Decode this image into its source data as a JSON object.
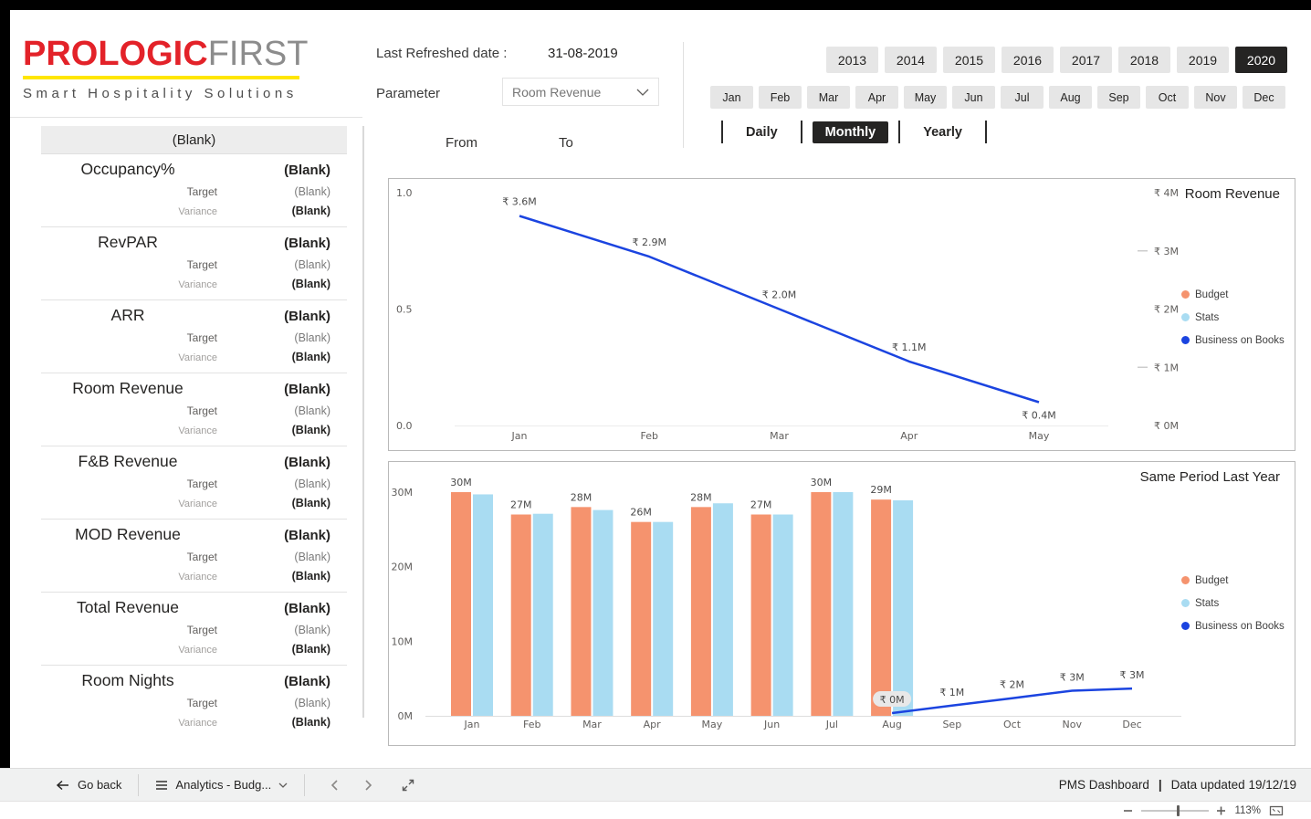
{
  "logo": {
    "brand_bold": "PROLOGIC",
    "brand_light": "FIRST",
    "tagline": "Smart Hospitality Solutions"
  },
  "kpi_panel": {
    "header": "(Blank)",
    "target_label": "Target",
    "variance_label": "Variance",
    "rows": [
      {
        "label": "Occupancy%",
        "value": "(Blank)",
        "target": "(Blank)",
        "variance": "(Blank)"
      },
      {
        "label": "RevPAR",
        "value": "(Blank)",
        "target": "(Blank)",
        "variance": "(Blank)"
      },
      {
        "label": "ARR",
        "value": "(Blank)",
        "target": "(Blank)",
        "variance": "(Blank)"
      },
      {
        "label": "Room Revenue",
        "value": "(Blank)",
        "target": "(Blank)",
        "variance": "(Blank)"
      },
      {
        "label": "F&B Revenue",
        "value": "(Blank)",
        "target": "(Blank)",
        "variance": "(Blank)"
      },
      {
        "label": "MOD Revenue",
        "value": "(Blank)",
        "target": "(Blank)",
        "variance": "(Blank)"
      },
      {
        "label": "Total Revenue",
        "value": "(Blank)",
        "target": "(Blank)",
        "variance": "(Blank)"
      },
      {
        "label": "Room Nights",
        "value": "(Blank)",
        "target": "(Blank)",
        "variance": "(Blank)"
      }
    ]
  },
  "controls": {
    "last_refreshed_label": "Last Refreshed date :",
    "last_refreshed_value": "31-08-2019",
    "parameter_label": "Parameter",
    "parameter_value": "Room Revenue",
    "from_label": "From",
    "to_label": "To"
  },
  "filters": {
    "years": [
      "2013",
      "2014",
      "2015",
      "2016",
      "2017",
      "2018",
      "2019",
      "2020"
    ],
    "selected_year": "2020",
    "months": [
      "Jan",
      "Feb",
      "Mar",
      "Apr",
      "May",
      "Jun",
      "Jul",
      "Aug",
      "Sep",
      "Oct",
      "Nov",
      "Dec"
    ],
    "granularities": [
      "Daily",
      "Monthly",
      "Yearly"
    ],
    "selected_granularity": "Monthly"
  },
  "colors": {
    "budget": "#F5936E",
    "stats": "#A9DCF2",
    "business_on_books": "#1B44E0",
    "selected_button": "#252423"
  },
  "chart_data": [
    {
      "type": "line",
      "title": "Room Revenue",
      "x": [
        "Jan",
        "Feb",
        "Mar",
        "Apr",
        "May"
      ],
      "series": [
        {
          "name": "Business on Books",
          "values": [
            3.6,
            2.9,
            2.0,
            1.1,
            0.4
          ],
          "unit": "₹M"
        }
      ],
      "point_labels": [
        "₹ 3.6M",
        "₹ 2.9M",
        "₹ 2.0M",
        "₹ 1.1M",
        "₹ 0.4M"
      ],
      "left_axis_ticks": [
        "1.0",
        "0.5",
        "0.0"
      ],
      "left_axis_range": [
        0,
        1
      ],
      "right_axis_ticks": [
        "₹ 4M",
        "₹ 3M",
        "₹ 2M",
        "₹ 1M",
        "₹ 0M"
      ],
      "right_axis_range": [
        0,
        4
      ],
      "legend": [
        "Budget",
        "Stats",
        "Business on Books"
      ],
      "legend_position": "right",
      "grid": false
    },
    {
      "type": "bar",
      "title": "Same Period Last Year",
      "categories": [
        "Jan",
        "Feb",
        "Mar",
        "Apr",
        "May",
        "Jun",
        "Jul",
        "Aug",
        "Sep",
        "Oct",
        "Nov",
        "Dec"
      ],
      "series": [
        {
          "name": "Budget",
          "type": "bar",
          "values": [
            30,
            27,
            28,
            26,
            28,
            27,
            30,
            29,
            null,
            null,
            null,
            null
          ],
          "unit": "M"
        },
        {
          "name": "Stats",
          "type": "bar",
          "values": [
            29.7,
            27.1,
            27.6,
            26.0,
            28.5,
            27.0,
            30.0,
            28.9,
            null,
            null,
            null,
            null
          ],
          "unit": "M"
        },
        {
          "name": "Business on Books",
          "type": "line",
          "values": [
            null,
            null,
            null,
            null,
            null,
            null,
            null,
            0,
            1,
            2,
            3,
            3.3
          ],
          "unit": "₹M"
        }
      ],
      "bar_labels": [
        "30M",
        "27M",
        "28M",
        "26M",
        "28M",
        "27M",
        "30M",
        "29M"
      ],
      "line_labels": [
        "₹ 0M",
        "₹ 1M",
        "₹ 2M",
        "₹ 3M",
        "₹ 3M"
      ],
      "y_ticks": [
        "30M",
        "20M",
        "10M",
        "0M"
      ],
      "ylim": [
        0,
        30
      ],
      "legend": [
        "Budget",
        "Stats",
        "Business on Books"
      ],
      "legend_position": "right",
      "grid": false
    }
  ],
  "footer": {
    "go_back": "Go back",
    "page_selector": "Analytics - Budg...",
    "title": "PMS Dashboard",
    "separator": "|",
    "updated": "Data updated 19/12/19",
    "zoom": "113%"
  }
}
